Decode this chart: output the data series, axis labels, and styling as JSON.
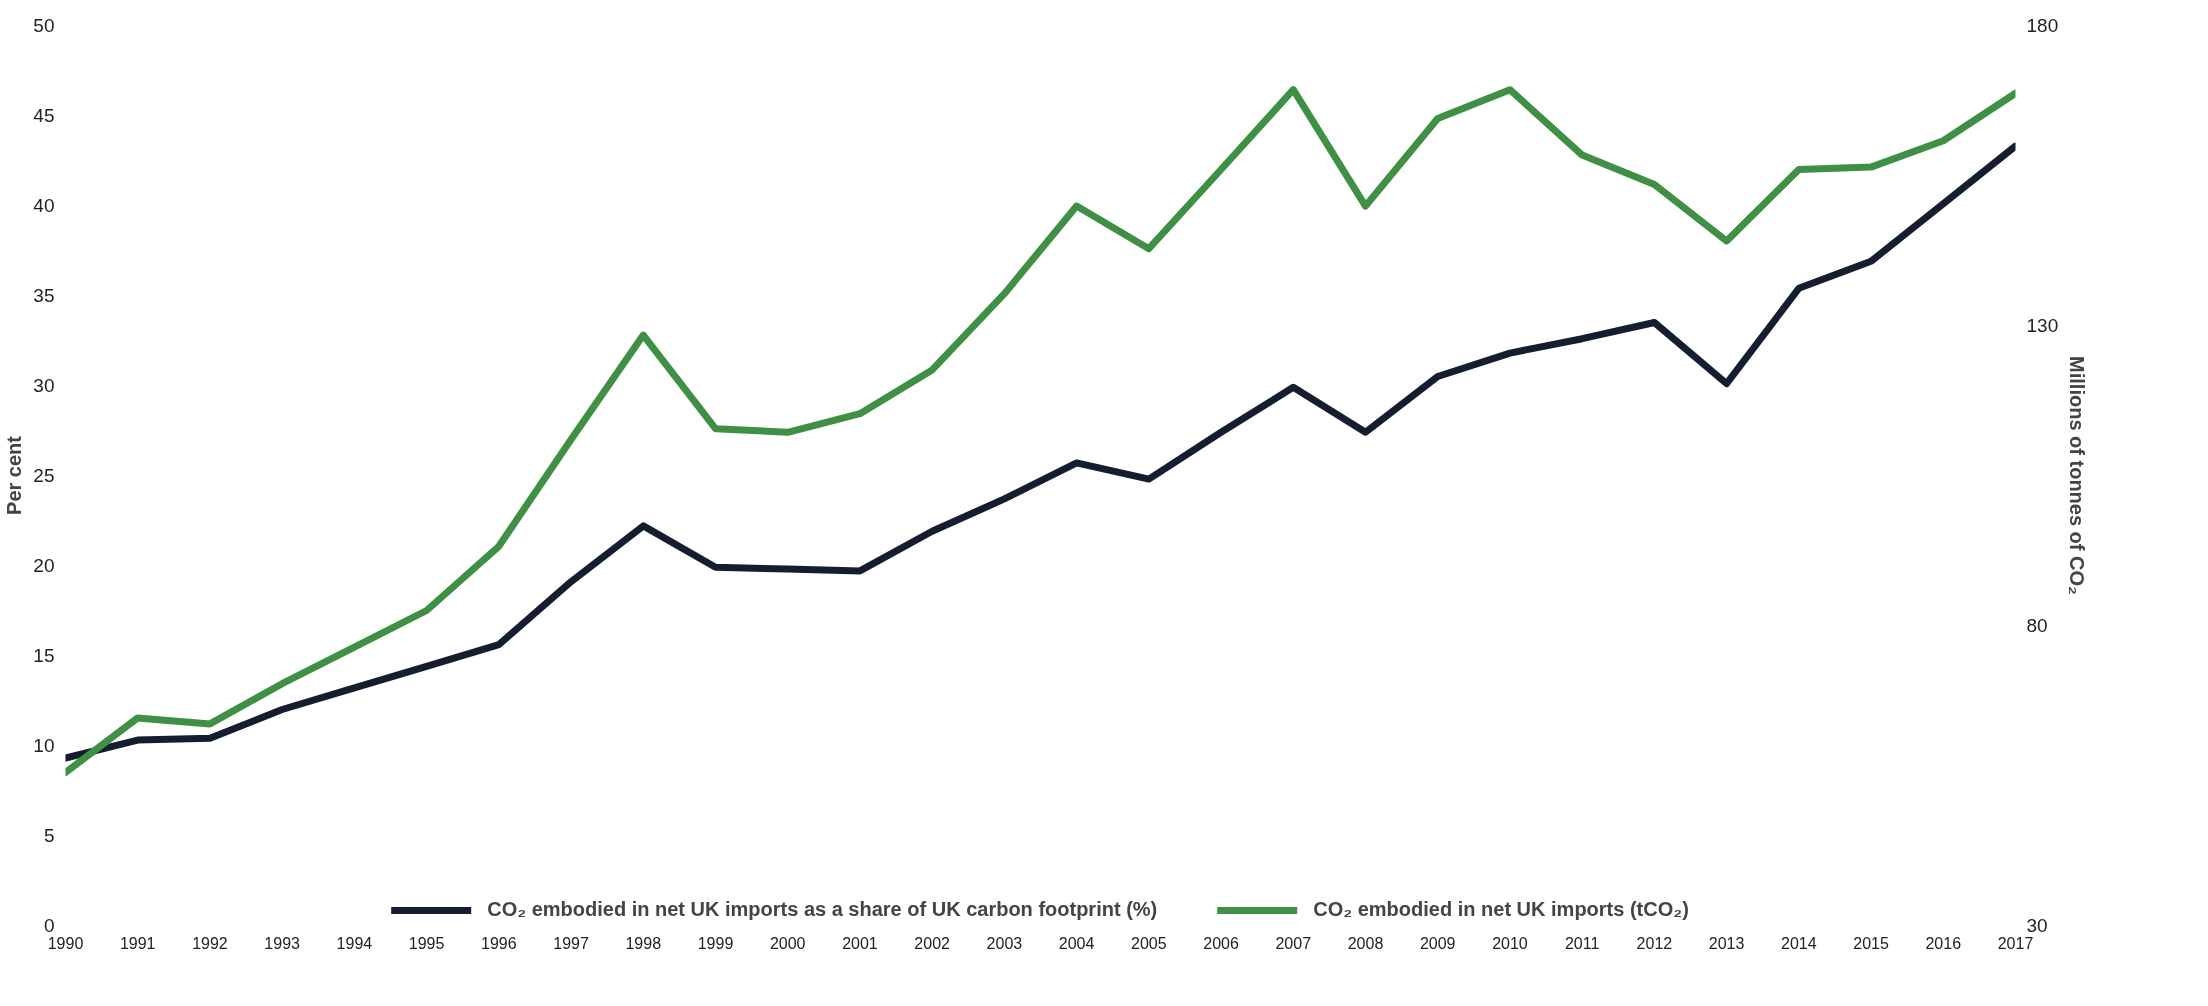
{
  "chart_data": {
    "type": "line",
    "ylabel": "Per cent",
    "y2label": "Millions of tonnes of CO₂",
    "x": [
      1990,
      1991,
      1992,
      1993,
      1994,
      1995,
      1996,
      1997,
      1998,
      1999,
      2000,
      2001,
      2002,
      2003,
      2004,
      2005,
      2006,
      2007,
      2008,
      2009,
      2010,
      2011,
      2012,
      2013,
      2014,
      2015,
      2016,
      2017
    ],
    "series": [
      {
        "name": "CO₂ embodied in net UK imports as a share of UK carbon footprint (%)",
        "color": "#141e2e",
        "values": [
          9.3,
          10.3,
          10.4,
          12.0,
          13.2,
          14.4,
          15.6,
          19.1,
          22.2,
          19.9,
          19.8,
          19.7,
          21.9,
          23.7,
          25.7,
          24.8,
          27.4,
          29.9,
          27.4,
          30.5,
          31.8,
          32.6,
          33.5,
          30.1,
          35.4,
          36.9,
          40.1,
          43.3
        ]
      },
      {
        "name": "CO₂ embodied in net UK imports (tCO₂)",
        "color": "#3f8f45",
        "axis": "y2",
        "values": [
          55.5,
          64.6,
          63.6,
          70.3,
          76.4,
          82.5,
          93.2,
          111.0,
          128.4,
          112.8,
          112.2,
          115.3,
          122.6,
          135.3,
          149.9,
          142.8,
          156.0,
          169.3,
          149.9,
          164.5,
          169.3,
          158.4,
          153.5,
          144.1,
          156.0,
          156.4,
          160.8,
          168.7
        ]
      }
    ],
    "xlim": [
      1990,
      2017
    ],
    "xticks": [
      1990,
      1991,
      1992,
      1993,
      1994,
      1995,
      1996,
      1997,
      1998,
      1999,
      2000,
      2001,
      2002,
      2003,
      2004,
      2005,
      2006,
      2007,
      2008,
      2009,
      2010,
      2011,
      2012,
      2013,
      2014,
      2015,
      2016,
      2017
    ],
    "ylim": [
      0,
      50
    ],
    "yticks": [
      0,
      5,
      10,
      15,
      20,
      25,
      30,
      35,
      40,
      45,
      50
    ],
    "y2lim": [
      30,
      180
    ],
    "y2ticks": [
      30,
      80,
      130,
      180
    ],
    "grid": false,
    "legend": "bottom",
    "marker": "none",
    "line_style": "solid"
  }
}
